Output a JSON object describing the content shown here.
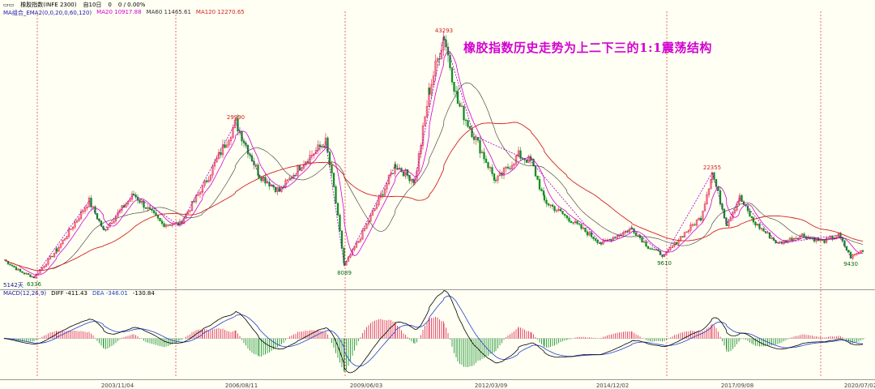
{
  "window": {
    "instrument": "橡胶指数(INFE 2300)",
    "period": "自10日",
    "stat1": "0",
    "stat2": "0 / 0.00%"
  },
  "ma_legend": {
    "label": "MA组合_EMA2(0,0,20,0,60,120)",
    "ma20": "MA20 10917.88",
    "ma60": "MA60 11465.61",
    "ma120": "MA120 12270.65"
  },
  "macd_legend": {
    "label": "MACD(12,26,9)",
    "diff": "DIFF -411.43",
    "dea": "DEA -346.01",
    "macd": "-130.84"
  },
  "annotation": "橡胶指数历史走势为上二下三的1:1震荡结构",
  "bottom_left_label": "5142天",
  "colors": {
    "background": "#fffff3",
    "up": "#e0204a",
    "down": "#0a8a1e",
    "ma20": "#d400d4",
    "ma60": "#333333",
    "ma120": "#d42020",
    "zigzag": "#a000d0",
    "dea": "#1f3fd0",
    "diff": "#000000",
    "vline": "#e03030"
  },
  "chart_data": {
    "type": "candlestick",
    "x_ticks": [
      "2003/11/04",
      "2006/08/11",
      "2009/06/03",
      "2012/03/09",
      "2014/12/02",
      "2017/09/08",
      "2020/07/02"
    ],
    "price_range": [
      4500,
      46000
    ],
    "swing_points": [
      {
        "date": "2002/01",
        "value": 6336,
        "label": "6336"
      },
      {
        "date": "2006/07",
        "value": 29990,
        "label": "29990"
      },
      {
        "date": "2008/12",
        "value": 8089,
        "label": "8089"
      },
      {
        "date": "2011/02",
        "value": 43293,
        "label": "43293"
      },
      {
        "date": "2015/11",
        "value": 9610,
        "label": "9610"
      },
      {
        "date": "2017/01",
        "value": 22355,
        "label": "22355"
      },
      {
        "date": "2020/03",
        "value": 9430,
        "label": "9430"
      }
    ],
    "macd_range": [
      -4500,
      5000
    ]
  }
}
